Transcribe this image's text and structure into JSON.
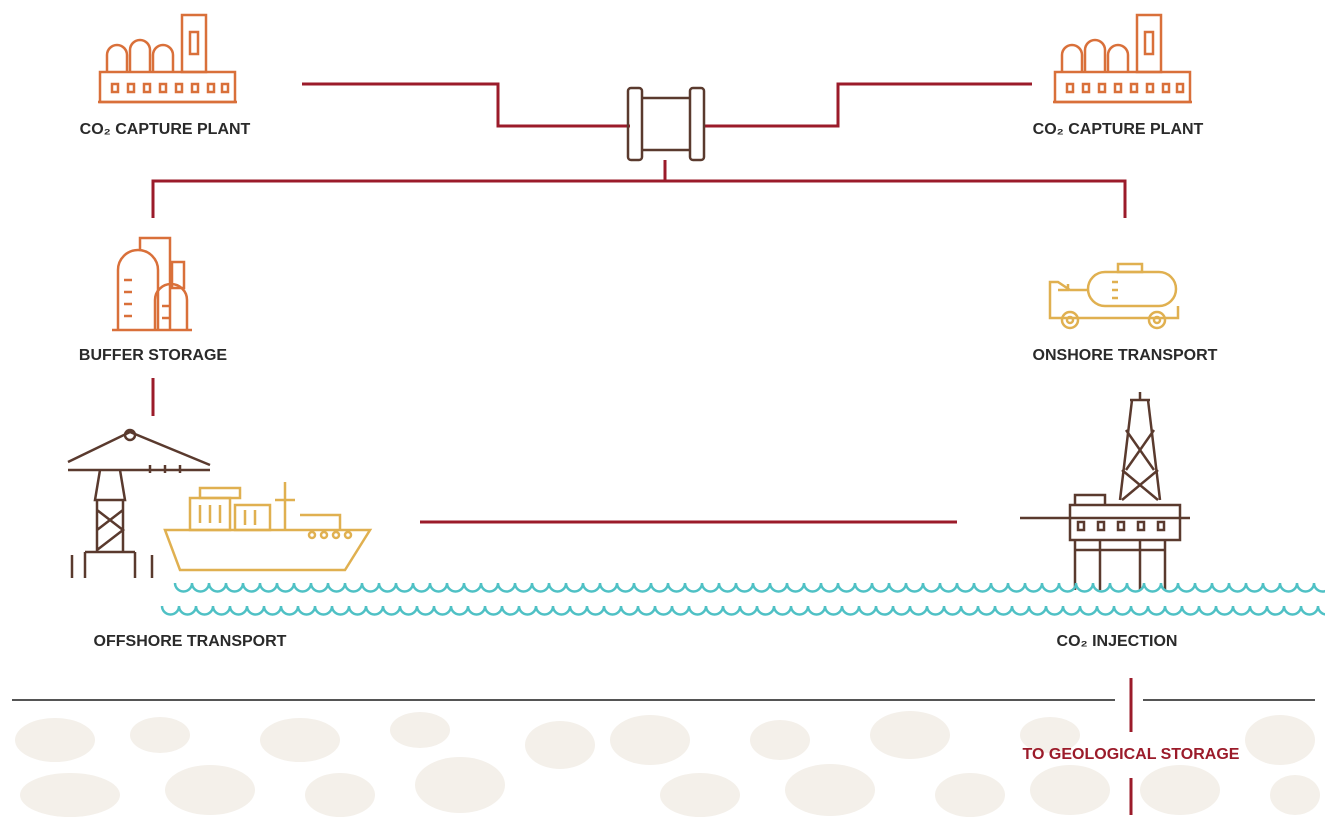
{
  "nodes": [
    {
      "label": "CO₂ CAPTURE PLANT"
    },
    {
      "label": "CO₂ CAPTURE PLANT"
    },
    {
      "label": "BUFFER STORAGE"
    },
    {
      "label": "ONSHORE TRANSPORT"
    },
    {
      "label": "OFFSHORE TRANSPORT"
    },
    {
      "label": "CO₂ INJECTION"
    },
    {
      "label": "TO GEOLOGICAL STORAGE"
    }
  ]
}
